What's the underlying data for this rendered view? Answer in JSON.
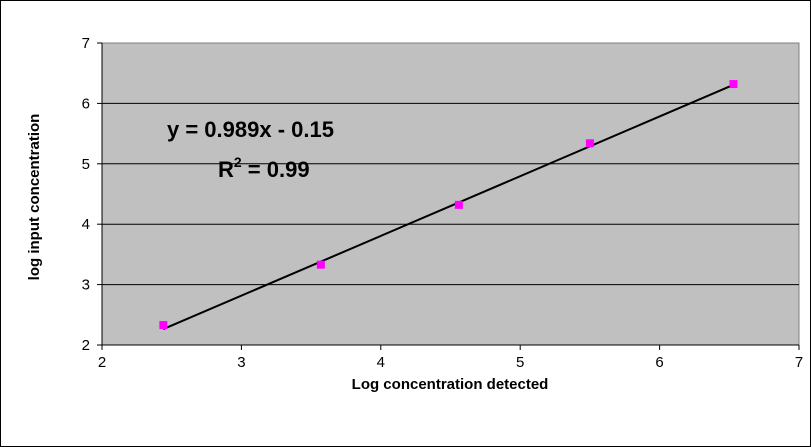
{
  "chart_data": {
    "type": "scatter",
    "xlabel": "Log concentration detected",
    "ylabel": "log input concentration",
    "xlim": [
      2,
      7
    ],
    "ylim": [
      2,
      7
    ],
    "x_ticks": [
      "2",
      "3",
      "4",
      "5",
      "6",
      "7"
    ],
    "y_ticks": [
      "2",
      "3",
      "4",
      "5",
      "6",
      "7"
    ],
    "grid": "horizontal major gridlines",
    "legend": "none",
    "plot_background": "#C0C0C0",
    "series": [
      {
        "marker_color": "#FF00FF",
        "points": [
          {
            "x": 2.44,
            "y": 2.33
          },
          {
            "x": 3.57,
            "y": 3.33
          },
          {
            "x": 4.56,
            "y": 4.32
          },
          {
            "x": 5.5,
            "y": 5.34
          },
          {
            "x": 6.53,
            "y": 6.32
          }
        ]
      }
    ],
    "trendline": {
      "type": "linear",
      "slope": 0.989,
      "intercept": -0.15,
      "x_range": [
        2.44,
        6.53
      ],
      "color": "#000000"
    },
    "annotations": {
      "equation": "y = 0.989x - 0.15",
      "r2_base": "R",
      "r2_sup": "2",
      "r2_value": " = 0.99"
    }
  }
}
